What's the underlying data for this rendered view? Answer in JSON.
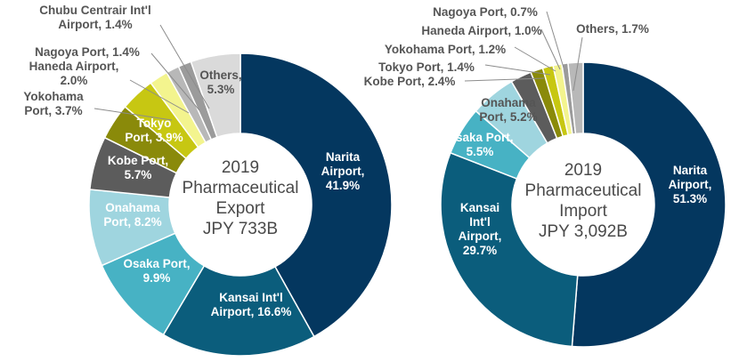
{
  "chart_data": [
    {
      "type": "pie",
      "variant": "donut",
      "center_label": [
        "2019",
        "Pharmaceutical",
        "Export",
        "JPY 733B"
      ],
      "slices": [
        {
          "name": "Narita Airport",
          "value": 41.9,
          "label": [
            "Narita",
            "Airport,",
            "41.9%"
          ],
          "color": "#04375f",
          "label_color": "#ffffff"
        },
        {
          "name": "Kansai Int'l Airport",
          "value": 16.6,
          "label": [
            "Kansai Int'l",
            "Airport, 16.6%"
          ],
          "color": "#0b5d7c",
          "label_color": "#ffffff"
        },
        {
          "name": "Osaka Port",
          "value": 9.9,
          "label": [
            "Osaka Port,",
            "9.9%"
          ],
          "color": "#47b2c4",
          "label_color": "#ffffff"
        },
        {
          "name": "Onahama Port",
          "value": 8.2,
          "label": [
            "Onahama",
            "Port, 8.2%"
          ],
          "color": "#9fd5df",
          "label_color": "#ffffff"
        },
        {
          "name": "Kobe Port",
          "value": 5.7,
          "label": [
            "Kobe Port,",
            "5.7%"
          ],
          "color": "#5c5c5c",
          "label_color": "#ffffff"
        },
        {
          "name": "Tokyo Port",
          "value": 3.9,
          "label": [
            "Tokyo",
            "Port, 3.9%"
          ],
          "color": "#8a8a0a",
          "label_color": "#ffffff"
        },
        {
          "name": "Yokohama Port",
          "value": 3.7,
          "label": [
            "Yokohama",
            "Port, 3.7%"
          ],
          "color": "#c7c712",
          "label_color": "#555555"
        },
        {
          "name": "Haneda Airport",
          "value": 2.0,
          "label": [
            "Haneda Airport,",
            "2.0%"
          ],
          "color": "#f3f48e",
          "label_color": "#555555"
        },
        {
          "name": "Nagoya Port",
          "value": 1.4,
          "label": [
            "Nagoya Port, 1.4%"
          ],
          "color": "#b8b8b8",
          "label_color": "#555555"
        },
        {
          "name": "Chubu Centrair Int'l Airport",
          "value": 1.4,
          "label": [
            "Chubu Centrair Int'l",
            "Airport, 1.4%"
          ],
          "color": "#9b9b9b",
          "label_color": "#555555"
        },
        {
          "name": "Others",
          "value": 5.3,
          "label": [
            "Others,",
            "5.3%"
          ],
          "color": "#dadada",
          "label_color": "#555555"
        }
      ]
    },
    {
      "type": "pie",
      "variant": "donut",
      "center_label": [
        "2019",
        "Pharmaceutical",
        "Import",
        "JPY 3,092B"
      ],
      "slices": [
        {
          "name": "Narita Airport",
          "value": 51.3,
          "label": [
            "Narita",
            "Airport,",
            "51.3%"
          ],
          "color": "#04375f",
          "label_color": "#ffffff"
        },
        {
          "name": "Kansai Int'l Airport",
          "value": 29.7,
          "label": [
            "Kansai",
            "Int'l",
            "Airport,",
            "29.7%"
          ],
          "color": "#0b5d7c",
          "label_color": "#ffffff"
        },
        {
          "name": "Osaka Port",
          "value": 5.5,
          "label": [
            "Osaka Port,",
            "5.5%"
          ],
          "color": "#47b2c4",
          "label_color": "#ffffff"
        },
        {
          "name": "Onahama Port",
          "value": 5.2,
          "label": [
            "Onahama",
            "Port, 5.2%"
          ],
          "color": "#9fd5df",
          "label_color": "#555555"
        },
        {
          "name": "Kobe Port",
          "value": 2.4,
          "label": [
            "Kobe Port, 2.4%"
          ],
          "color": "#5c5c5c",
          "label_color": "#555555"
        },
        {
          "name": "Tokyo Port",
          "value": 1.4,
          "label": [
            "Tokyo Port, 1.4%"
          ],
          "color": "#8a8a0a",
          "label_color": "#555555"
        },
        {
          "name": "Yokohama Port",
          "value": 1.2,
          "label": [
            "Yokohama Port, 1.2%"
          ],
          "color": "#c7c712",
          "label_color": "#555555"
        },
        {
          "name": "Haneda Airport",
          "value": 1.0,
          "label": [
            "Haneda Airport, 1.0%"
          ],
          "color": "#f3f48e",
          "label_color": "#555555"
        },
        {
          "name": "Nagoya Port",
          "value": 0.7,
          "label": [
            "Nagoya Port, 0.7%"
          ],
          "color": "#9b9b9b",
          "label_color": "#555555"
        },
        {
          "name": "Others",
          "value": 1.7,
          "label": [
            "Others, 1.7%"
          ],
          "color": "#b8b8b8",
          "label_color": "#555555"
        }
      ]
    }
  ]
}
